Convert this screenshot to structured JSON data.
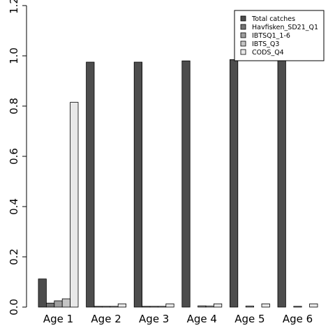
{
  "chart_data": {
    "type": "bar",
    "categories": [
      "Age 1",
      "Age 2",
      "Age 3",
      "Age 4",
      "Age 5",
      "Age 6"
    ],
    "series": [
      {
        "name": "Total catches",
        "color": "#4d4d4d",
        "values": [
          0.112,
          0.975,
          0.975,
          0.98,
          0.985,
          0.988
        ]
      },
      {
        "name": "Havfisken_SD21_Q1",
        "color": "#757575",
        "values": [
          0.016,
          0.003,
          0.003,
          0.0,
          0.0,
          0.0
        ]
      },
      {
        "name": "IBTSQ1_1-6",
        "color": "#9e9e9e",
        "values": [
          0.025,
          0.003,
          0.003,
          0.005,
          0.004,
          0.003
        ]
      },
      {
        "name": "IBTS_Q3",
        "color": "#c4c4c4",
        "values": [
          0.033,
          0.003,
          0.003,
          0.004,
          0.0,
          0.0
        ]
      },
      {
        "name": "CODS_Q4",
        "color": "#e8e8e8",
        "values": [
          0.815,
          0.013,
          0.013,
          0.013,
          0.013,
          0.013
        ]
      }
    ],
    "y_ticks": [
      "0.0",
      "0.2",
      "0.4",
      "0.6",
      "0.8",
      "1.0",
      "1.2"
    ],
    "ylim": [
      0,
      1.2
    ],
    "legend_position": "top-right",
    "grid": false
  }
}
